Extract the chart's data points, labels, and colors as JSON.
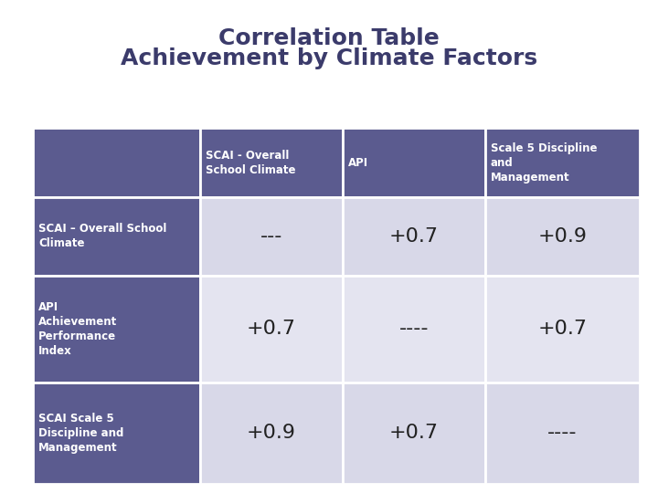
{
  "title_line1": "Correlation Table",
  "title_line2": "Achievement by Climate Factors",
  "title_color": "#3b3b6b",
  "title_fontsize": 18,
  "header_bg_color": "#5b5b8f",
  "header_text_color": "#ffffff",
  "row_label_bg_color": "#5b5b8f",
  "row_label_text_color": "#ffffff",
  "cell_bg_light": "#d8d8e8",
  "cell_bg_lighter": "#e4e4f0",
  "cell_text_color": "#222222",
  "col_headers": [
    "SCAI - Overall\nSchool Climate",
    "API",
    "Scale 5 Discipline\nand\nManagement"
  ],
  "row_labels": [
    "SCAI – Overall School\nClimate",
    "API\nAchievement\nPerformance\nIndex",
    "SCAI Scale 5\nDiscipline and\nManagement"
  ],
  "cell_values": [
    [
      "---",
      "+0.7",
      "+0.9"
    ],
    [
      "+0.7",
      "----",
      "+0.7"
    ],
    [
      "+0.9",
      "+0.7",
      "----"
    ]
  ],
  "fig_width": 7.2,
  "fig_height": 5.4,
  "dpi": 100
}
